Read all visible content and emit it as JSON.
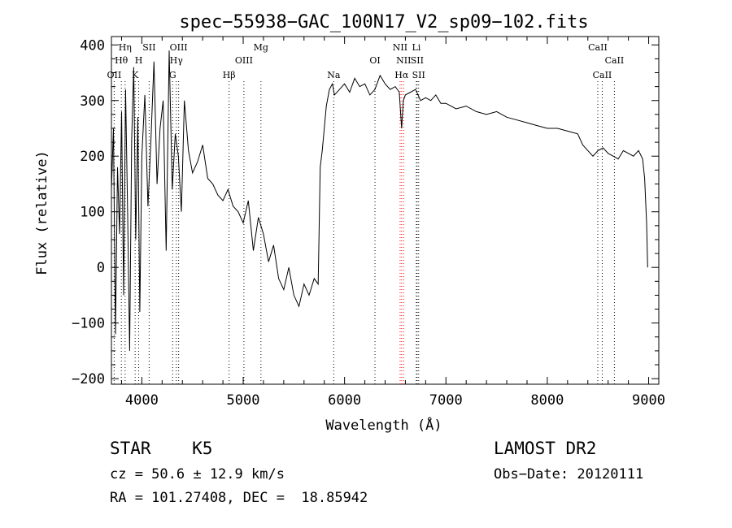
{
  "chart_data": {
    "type": "line",
    "title": "spec−55938−GAC_100N17_V2_sp09−102.fits",
    "xlabel": "Wavelength (Å)",
    "ylabel": "Flux (relative)",
    "xlim": [
      3700,
      9100
    ],
    "ylim": [
      -210,
      415
    ],
    "xticks": [
      4000,
      5000,
      6000,
      7000,
      8000,
      9000
    ],
    "yticks": [
      -200,
      -100,
      0,
      100,
      200,
      300,
      400
    ],
    "tick_labels_x": [
      "4000",
      "5000",
      "6000",
      "7000",
      "8000",
      "9000"
    ],
    "tick_labels_y": [
      "−200",
      "−100",
      "0",
      "100",
      "200",
      "300",
      "400"
    ],
    "grid": false,
    "series": [
      {
        "x": [
          3700,
          3720,
          3740,
          3760,
          3780,
          3800,
          3820,
          3840,
          3860,
          3880,
          3900,
          3920,
          3940,
          3960,
          3980,
          4000,
          4030,
          4060,
          4090,
          4120,
          4150,
          4180,
          4210,
          4240,
          4270,
          4300,
          4330,
          4360,
          4390,
          4420,
          4460,
          4500,
          4550,
          4600,
          4650,
          4700,
          4750,
          4800,
          4850,
          4900,
          4950,
          5000,
          5050,
          5100,
          5150,
          5200,
          5250,
          5300,
          5350,
          5400,
          5450,
          5500,
          5550,
          5600,
          5650,
          5700,
          5740,
          5760,
          5780,
          5800,
          5820,
          5850,
          5880,
          5900,
          5950,
          6000,
          6050,
          6100,
          6150,
          6200,
          6250,
          6300,
          6350,
          6400,
          6450,
          6500,
          6540,
          6563,
          6580,
          6600,
          6650,
          6700,
          6750,
          6800,
          6850,
          6900,
          6950,
          7000,
          7100,
          7200,
          7300,
          7400,
          7500,
          7600,
          7700,
          7800,
          7900,
          8000,
          8100,
          8200,
          8300,
          8350,
          8400,
          8450,
          8500,
          8550,
          8600,
          8650,
          8700,
          8750,
          8800,
          8850,
          8900,
          8940,
          8960,
          8980,
          8990
        ],
        "y": [
          140,
          250,
          -120,
          180,
          60,
          280,
          -50,
          320,
          100,
          -150,
          230,
          360,
          50,
          270,
          -80,
          200,
          310,
          110,
          230,
          370,
          150,
          250,
          300,
          30,
          390,
          140,
          240,
          200,
          100,
          300,
          210,
          170,
          190,
          220,
          160,
          150,
          130,
          120,
          140,
          110,
          100,
          80,
          120,
          30,
          90,
          60,
          10,
          40,
          -20,
          -40,
          0,
          -50,
          -70,
          -30,
          -50,
          -20,
          -30,
          180,
          210,
          250,
          290,
          320,
          330,
          310,
          320,
          330,
          315,
          340,
          325,
          330,
          310,
          320,
          345,
          330,
          320,
          325,
          315,
          250,
          300,
          310,
          315,
          320,
          300,
          305,
          300,
          310,
          295,
          295,
          285,
          290,
          280,
          275,
          280,
          270,
          265,
          260,
          255,
          250,
          250,
          245,
          240,
          220,
          210,
          200,
          210,
          215,
          205,
          200,
          195,
          210,
          205,
          200,
          210,
          195,
          160,
          80,
          0
        ]
      }
    ],
    "lines": [
      {
        "w": 3727,
        "color": "#000000",
        "label": "OII",
        "row": 3
      },
      {
        "w": 3798,
        "color": "#000000",
        "label": "Hθ",
        "row": 2
      },
      {
        "w": 3835,
        "color": "#000000",
        "label": "Hη",
        "row": 1
      },
      {
        "w": 3934,
        "color": "#000000",
        "label": "K",
        "row": 3
      },
      {
        "w": 3969,
        "color": "#000000",
        "label": "H",
        "row": 2
      },
      {
        "w": 4072,
        "color": "#000000",
        "label": "SII",
        "row": 1
      },
      {
        "w": 4304,
        "color": "#000000",
        "label": "G",
        "row": 3
      },
      {
        "w": 4340,
        "color": "#000000",
        "label": "Hγ",
        "row": 2
      },
      {
        "w": 4363,
        "color": "#000000",
        "label": "OIII",
        "row": 1
      },
      {
        "w": 4861,
        "color": "#000000",
        "label": "Hβ",
        "row": 3
      },
      {
        "w": 5007,
        "color": "#000000",
        "label": "OIII",
        "row": 2
      },
      {
        "w": 5175,
        "color": "#000000",
        "label": "Mg",
        "row": 1
      },
      {
        "w": 5893,
        "color": "#000000",
        "label": "Na",
        "row": 3
      },
      {
        "w": 6300,
        "color": "#000000",
        "label": "OI",
        "row": 2
      },
      {
        "w": 6548,
        "color": "#ff0000",
        "label": "NII",
        "row": 1
      },
      {
        "w": 6563,
        "color": "#ff0000",
        "label": "Hα",
        "row": 3
      },
      {
        "w": 6583,
        "color": "#ff0000",
        "label": "NII",
        "row": 2
      },
      {
        "w": 6708,
        "color": "#000000",
        "label": "Li",
        "row": 1
      },
      {
        "w": 6716,
        "color": "#000000",
        "label": "SII",
        "row": 2
      },
      {
        "w": 6731,
        "color": "#000000",
        "label": "SII",
        "row": 3
      },
      {
        "w": 8498,
        "color": "#000000",
        "label": "CaII",
        "row": 1
      },
      {
        "w": 8542,
        "color": "#000000",
        "label": "CaII",
        "row": 3
      },
      {
        "w": 8662,
        "color": "#000000",
        "label": "CaII",
        "row": 2
      }
    ]
  },
  "info": {
    "star": "STAR    K5",
    "survey": "LAMOST DR2",
    "cz": "cz = 50.6 ± 12.9 km/s",
    "obs_date": "Obs−Date: 20120111",
    "radec": "RA = 101.27408, DEC =  18.85942"
  }
}
